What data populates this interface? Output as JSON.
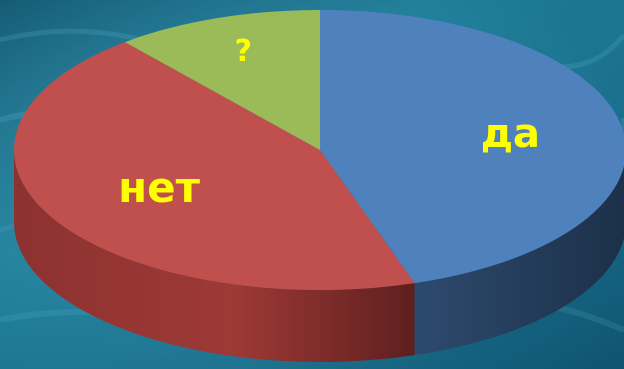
{
  "chart_data": {
    "type": "pie",
    "style": "3d",
    "slices": [
      {
        "label": "да",
        "value": 45,
        "color": "#4f81bd"
      },
      {
        "label": "нет",
        "value": 44,
        "color": "#c0504d"
      },
      {
        "label": "?",
        "value": 11,
        "color": "#9bbb59"
      }
    ],
    "label_color": "#ffff00",
    "background": "sea-water-texture"
  }
}
